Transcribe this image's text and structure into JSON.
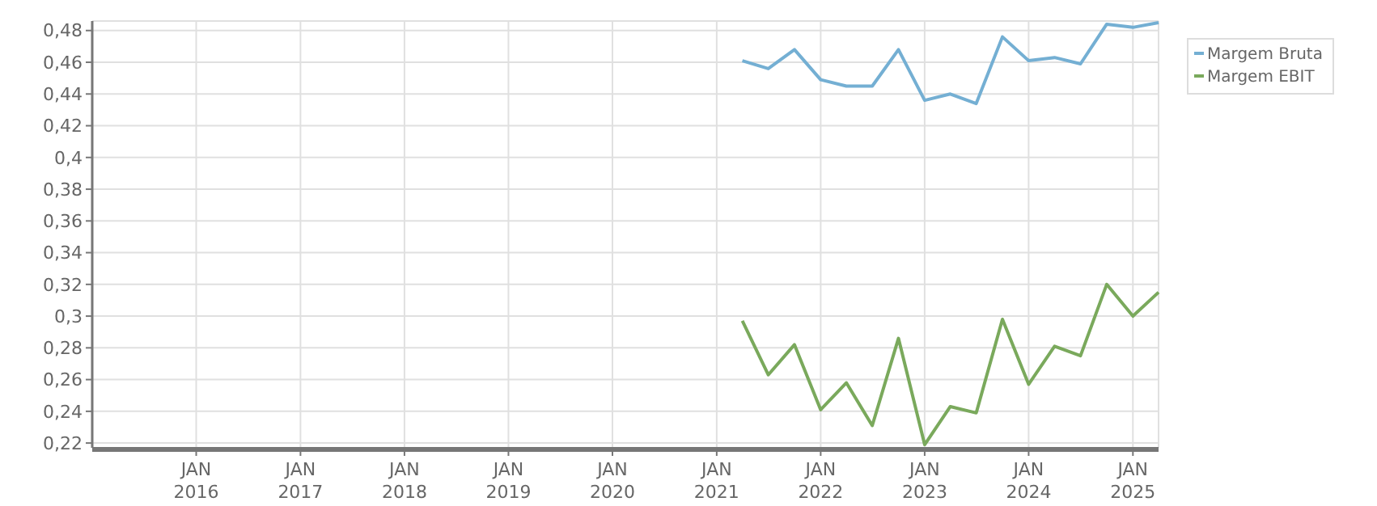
{
  "chart_data": {
    "type": "line",
    "x": [
      "2021-04",
      "2021-07",
      "2021-10",
      "2022-01",
      "2022-04",
      "2022-07",
      "2022-10",
      "2023-01",
      "2023-04",
      "2023-07",
      "2023-10",
      "2024-01",
      "2024-04",
      "2024-07",
      "2024-10",
      "2025-01",
      "2025-04"
    ],
    "series": [
      {
        "name": "Margem Bruta",
        "color": "#74afd3",
        "values": [
          0.461,
          0.456,
          0.468,
          0.449,
          0.445,
          0.445,
          0.468,
          0.436,
          0.44,
          0.434,
          0.476,
          0.461,
          0.463,
          0.459,
          0.484,
          0.482,
          0.485
        ]
      },
      {
        "name": "Margem EBIT",
        "color": "#7aa95c",
        "values": [
          0.297,
          0.263,
          0.282,
          0.241,
          0.258,
          0.231,
          0.286,
          0.219,
          0.243,
          0.239,
          0.298,
          0.257,
          0.281,
          0.275,
          0.32,
          0.3,
          0.315
        ]
      }
    ],
    "xlim": [
      "2015-01",
      "2025-04"
    ],
    "xticks": [
      {
        "value": "2016-01",
        "label": "JAN\n2016"
      },
      {
        "value": "2017-01",
        "label": "JAN\n2017"
      },
      {
        "value": "2018-01",
        "label": "JAN\n2018"
      },
      {
        "value": "2019-01",
        "label": "JAN\n2019"
      },
      {
        "value": "2020-01",
        "label": "JAN\n2020"
      },
      {
        "value": "2021-01",
        "label": "JAN\n2021"
      },
      {
        "value": "2022-01",
        "label": "JAN\n2022"
      },
      {
        "value": "2023-01",
        "label": "JAN\n2023"
      },
      {
        "value": "2024-01",
        "label": "JAN\n2024"
      },
      {
        "value": "2025-01",
        "label": "JAN\n2025"
      }
    ],
    "ylim": [
      0.217,
      0.486
    ],
    "yticks": [
      {
        "value": 0.22,
        "label": "0,22"
      },
      {
        "value": 0.24,
        "label": "0,24"
      },
      {
        "value": 0.26,
        "label": "0,26"
      },
      {
        "value": 0.28,
        "label": "0,28"
      },
      {
        "value": 0.3,
        "label": "0,3"
      },
      {
        "value": 0.32,
        "label": "0,32"
      },
      {
        "value": 0.34,
        "label": "0,34"
      },
      {
        "value": 0.36,
        "label": "0,36"
      },
      {
        "value": 0.38,
        "label": "0,38"
      },
      {
        "value": 0.4,
        "label": "0,4"
      },
      {
        "value": 0.42,
        "label": "0,42"
      },
      {
        "value": 0.44,
        "label": "0,44"
      },
      {
        "value": 0.46,
        "label": "0,46"
      },
      {
        "value": 0.48,
        "label": "0,48"
      }
    ],
    "grid": true,
    "legend": "top right",
    "line_style": "solid",
    "marker": "none"
  }
}
